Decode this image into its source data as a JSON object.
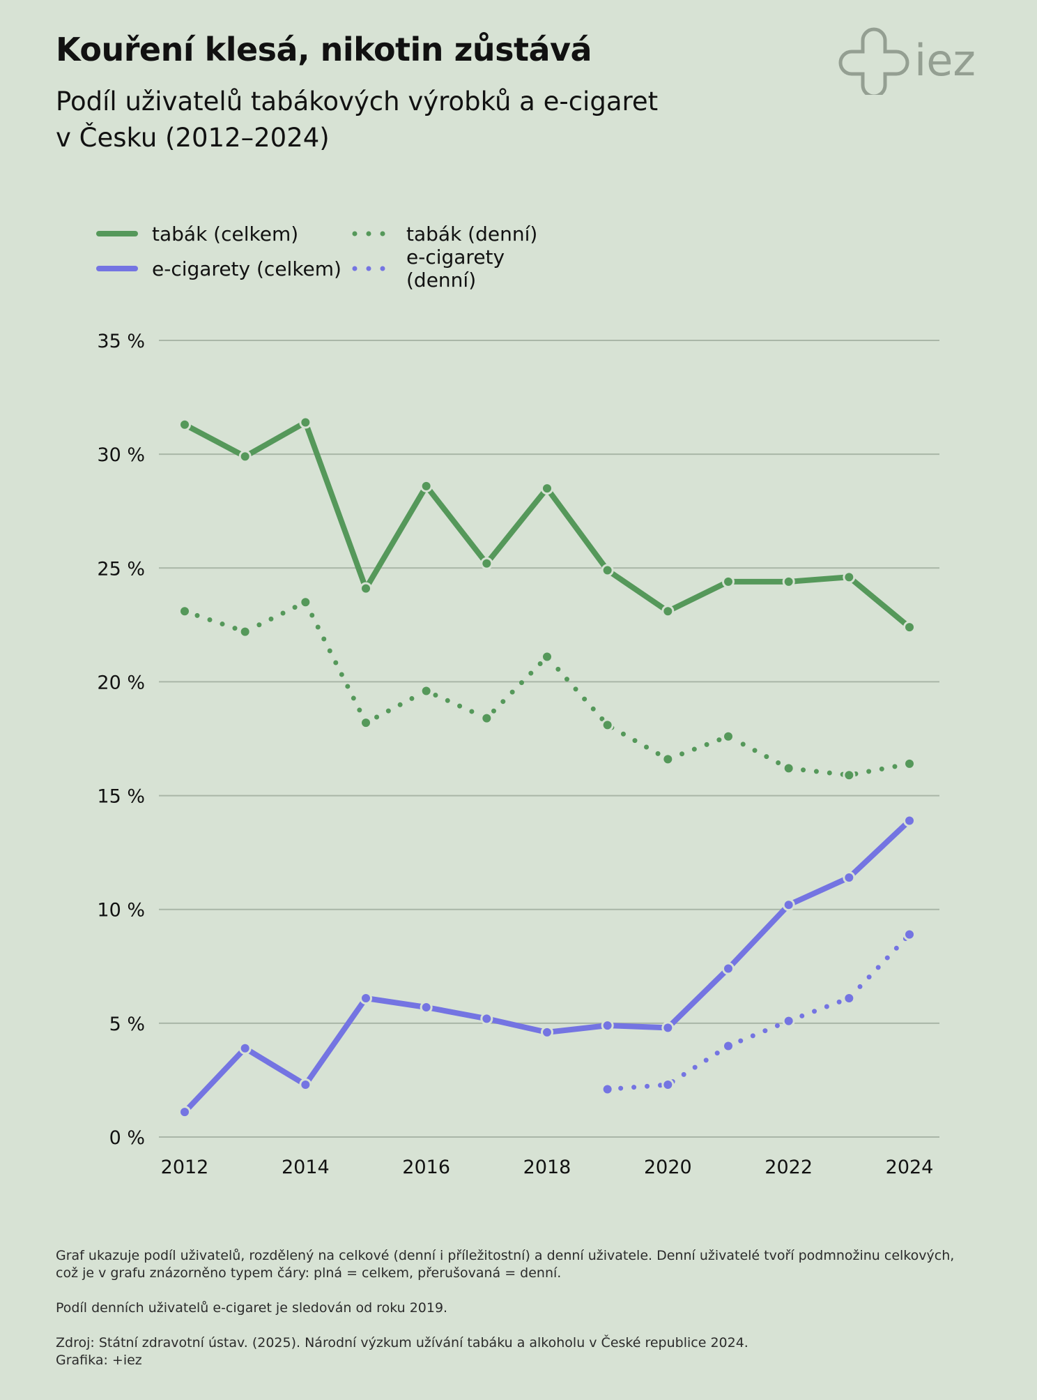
{
  "header": {
    "title": "Kouření klesá, nikotin zůstává",
    "subtitle_line1": "Podíl uživatelů tabákových výrobků a e-cigaret",
    "subtitle_line2": "v Česku (2012–2024)",
    "logo_text": "iez"
  },
  "colors": {
    "tobacco": "#55985a",
    "ecig": "#7474e2",
    "grid": "#a9b6a7",
    "background": "#d7e2d4"
  },
  "chart_data": {
    "type": "line",
    "x": [
      2012,
      2013,
      2014,
      2015,
      2016,
      2017,
      2018,
      2019,
      2020,
      2021,
      2022,
      2023,
      2024
    ],
    "series": [
      {
        "name": "tabák (celkem)",
        "style": "solid",
        "color": "#55985a",
        "values": [
          31.3,
          29.9,
          31.4,
          24.1,
          28.6,
          25.2,
          28.5,
          24.9,
          23.1,
          24.4,
          24.4,
          24.6,
          22.4
        ]
      },
      {
        "name": "tabák (denní)",
        "style": "dotted",
        "color": "#55985a",
        "values": [
          23.1,
          22.2,
          23.5,
          18.2,
          19.6,
          18.4,
          21.1,
          18.1,
          16.6,
          17.6,
          16.2,
          15.9,
          16.4
        ]
      },
      {
        "name": "e-cigarety (celkem)",
        "style": "solid",
        "color": "#7474e2",
        "values": [
          1.1,
          3.9,
          2.3,
          6.1,
          5.7,
          5.2,
          4.6,
          4.9,
          4.8,
          7.4,
          10.2,
          11.4,
          13.9
        ]
      },
      {
        "name": "e-cigarety (denní)",
        "style": "dotted",
        "color": "#7474e2",
        "values": [
          null,
          null,
          null,
          null,
          null,
          null,
          null,
          2.1,
          2.3,
          4.0,
          5.1,
          6.1,
          8.9
        ]
      }
    ],
    "ylim": [
      0,
      35
    ],
    "yticks": [
      0,
      5,
      10,
      15,
      20,
      25,
      30,
      35
    ],
    "ytick_labels": [
      "0 %",
      "5 %",
      "10 %",
      "15 %",
      "20 %",
      "25 %",
      "30 %",
      "35 %"
    ],
    "xticks": [
      2012,
      2014,
      2016,
      2018,
      2020,
      2022,
      2024
    ],
    "xtick_labels": [
      "2012",
      "2014",
      "2016",
      "2018",
      "2020",
      "2022",
      "2024"
    ],
    "grid": true,
    "legend": "top-left"
  },
  "legend": {
    "items": [
      {
        "label": "tabák (celkem)"
      },
      {
        "label": "tabák (denní)"
      },
      {
        "label": "e-cigarety (celkem)"
      },
      {
        "label": "e-cigarety (denní)"
      }
    ]
  },
  "notes": {
    "p1": "Graf ukazuje podíl uživatelů, rozdělený na celkové (denní i příležitostní) a denní uživatele. Denní uživatelé tvoří podmnožinu celkových, což je v grafu znázorněno typem čáry: plná = celkem, přerušovaná = denní.",
    "p2": "Podíl denních uživatelů e-cigaret je sledován od roku 2019.",
    "source": "Zdroj: Státní zdravotní ústav. (2025). Národní výzkum užívání tabáku a alkoholu v České republice 2024.",
    "credit": "Grafika: +iez"
  }
}
